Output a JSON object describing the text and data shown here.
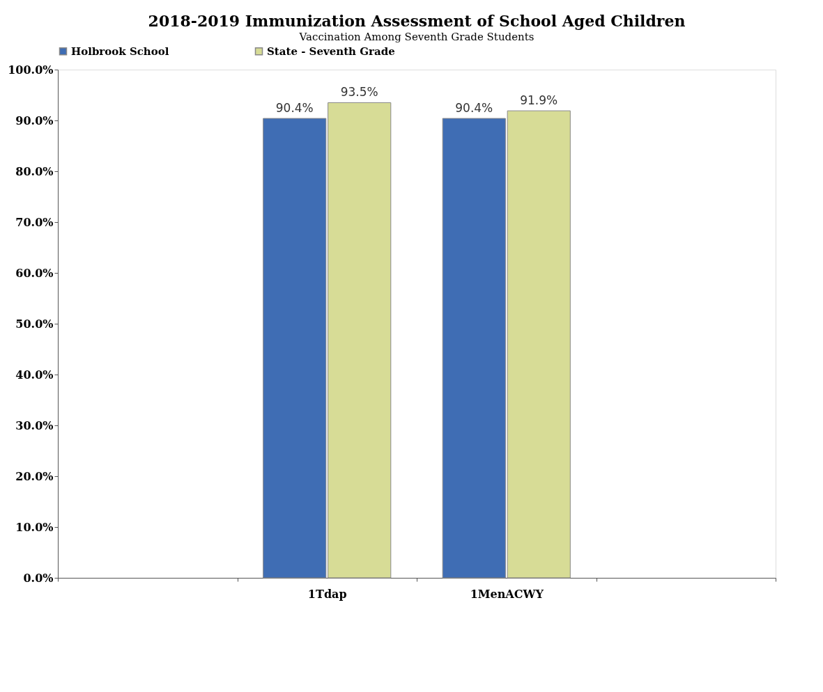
{
  "chart_data": {
    "type": "bar",
    "title": "2018-2019 Immunization Assessment of School Aged Children",
    "subtitle": "Vaccination Among Seventh Grade Students",
    "categories": [
      null,
      "1Tdap",
      "1MenACWY",
      null
    ],
    "series": [
      {
        "name": "Holbrook School",
        "color": "#3f6db4",
        "values": [
          null,
          90.4,
          90.4,
          null
        ],
        "value_labels": [
          null,
          "90.4%",
          "90.4%",
          null
        ]
      },
      {
        "name": "State - Seventh Grade",
        "color": "#d7dc96",
        "values": [
          null,
          93.5,
          91.9,
          null
        ],
        "value_labels": [
          null,
          "93.5%",
          "91.9%",
          null
        ]
      }
    ],
    "ylim": [
      0,
      100
    ],
    "yticks": [
      {
        "value": 0,
        "label": "0.0%"
      },
      {
        "value": 10,
        "label": "10.0%"
      },
      {
        "value": 20,
        "label": "20.0%"
      },
      {
        "value": 30,
        "label": "30.0%"
      },
      {
        "value": 40,
        "label": "40.0%"
      },
      {
        "value": 50,
        "label": "50.0%"
      },
      {
        "value": 60,
        "label": "60.0%"
      },
      {
        "value": 70,
        "label": "70.0%"
      },
      {
        "value": 80,
        "label": "80.0%"
      },
      {
        "value": 90,
        "label": "90.0%"
      },
      {
        "value": 100,
        "label": "100.0%"
      }
    ],
    "legend": "top",
    "grid": false
  }
}
